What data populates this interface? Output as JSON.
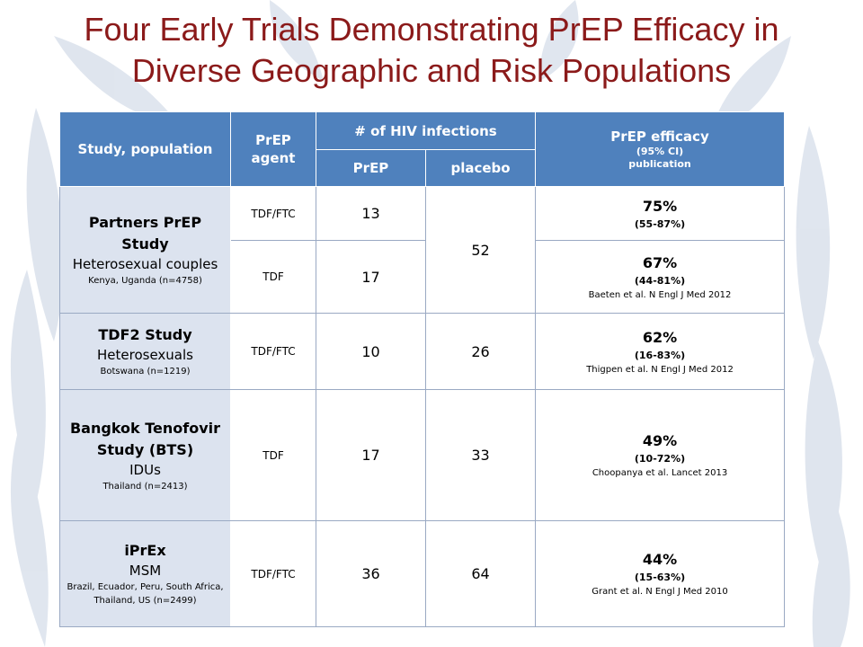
{
  "slide": {
    "title_line1": "Four Early Trials Demonstrating PrEP Efficacy in",
    "title_line2": "Diverse Geographic and Risk Populations"
  },
  "header": {
    "study_population": "Study, population",
    "prep_agent": "PrEP agent",
    "hiv_infections": "# of HIV infections",
    "prep": "PrEP",
    "placebo": "placebo",
    "efficacy": "PrEP efficacy",
    "efficacy_ci": "(95% CI)",
    "efficacy_pub": "publication"
  },
  "rows": [
    {
      "study": "Partners PrEP Study",
      "population": "Heterosexual couples",
      "location": "Kenya, Uganda (n=4758)",
      "placebo": "52",
      "arms": [
        {
          "agent": "TDF/FTC",
          "prep": "13",
          "efficacy": "75%",
          "ci": "(55-87%)",
          "publication": ""
        },
        {
          "agent": "TDF",
          "prep": "17",
          "efficacy": "67%",
          "ci": "(44-81%)",
          "publication": "Baeten et al. N Engl J Med 2012"
        }
      ]
    },
    {
      "study": "TDF2 Study",
      "population": "Heterosexuals",
      "location": "Botswana (n=1219)",
      "agent": "TDF/FTC",
      "prep": "10",
      "placebo": "26",
      "efficacy": "62%",
      "ci": "(16-83%)",
      "publication": "Thigpen et al. N Engl J Med 2012"
    },
    {
      "study": "Bangkok Tenofovir Study (BTS)",
      "population": "IDUs",
      "location": "Thailand (n=2413)",
      "agent": "TDF",
      "prep": "17",
      "placebo": "33",
      "efficacy": "49%",
      "ci": "(10-72%)",
      "publication": "Choopanya et al. Lancet 2013"
    },
    {
      "study": "iPrEx",
      "population": "MSM",
      "location": "Brazil, Ecuador, Peru, South Africa, Thailand, US (n=2499)",
      "agent": "TDF/FTC",
      "prep": "36",
      "placebo": "64",
      "efficacy": "44%",
      "ci": "(15-63%)",
      "publication": "Grant et al. N Engl J Med 2010"
    }
  ],
  "colors": {
    "title": "#8b1a1a",
    "header_bg": "#4f81bd",
    "study_bg": "#dce3ef",
    "background_leaves": "#d5dde9"
  }
}
